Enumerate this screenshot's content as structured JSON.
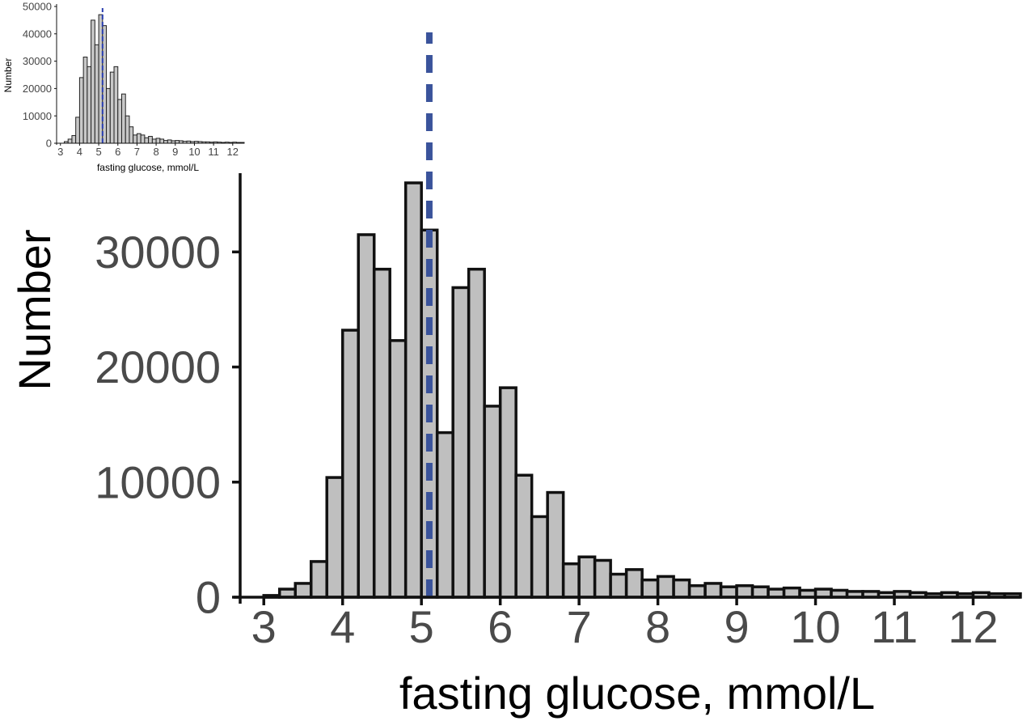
{
  "chart_data": [
    {
      "type": "bar",
      "role": "main",
      "x_start": [
        3.0,
        3.2,
        3.4,
        3.6,
        3.8,
        4.0,
        4.2,
        4.4,
        4.6,
        4.8,
        5.0,
        5.2,
        5.4,
        5.6,
        5.8,
        6.0,
        6.2,
        6.4,
        6.6,
        6.8,
        7.0,
        7.2,
        7.4,
        7.6,
        7.8,
        8.0,
        8.2,
        8.4,
        8.6,
        8.8,
        9.0,
        9.2,
        9.4,
        9.6,
        9.8,
        10.0,
        10.2,
        10.4,
        10.6,
        10.8,
        11.0,
        11.2,
        11.4,
        11.6,
        11.8,
        12.0,
        12.2,
        12.4
      ],
      "bin_width": 0.2,
      "values": [
        150,
        700,
        1200,
        3100,
        10400,
        23200,
        31500,
        28500,
        22300,
        36000,
        31900,
        14300,
        26900,
        28500,
        16600,
        18200,
        10600,
        7000,
        9100,
        2900,
        3500,
        3200,
        2000,
        2400,
        1500,
        1800,
        1500,
        1000,
        1200,
        900,
        1000,
        900,
        700,
        800,
        600,
        700,
        600,
        500,
        500,
        400,
        500,
        400,
        300,
        400,
        300,
        400,
        300,
        300
      ],
      "xlabel": "fasting glucose, mmol/L",
      "ylabel": "Number",
      "xlim": [
        2.7,
        12.6
      ],
      "ylim": [
        0,
        36000
      ],
      "x_ticks": [
        "3",
        "4",
        "5",
        "6",
        "7",
        "8",
        "9",
        "10",
        "11",
        "12"
      ],
      "y_ticks": [
        "0",
        "10000",
        "20000",
        "30000"
      ],
      "reference_line": {
        "x": 5.1,
        "style": "dashed",
        "color": "#3a539b"
      },
      "bar_color": "#bfbfbf",
      "edge_color": "#111111",
      "grid": false
    },
    {
      "type": "bar",
      "role": "inset",
      "x_start": [
        3.2,
        3.4,
        3.6,
        3.8,
        4.0,
        4.2,
        4.4,
        4.6,
        4.8,
        5.0,
        5.2,
        5.4,
        5.6,
        5.8,
        6.0,
        6.2,
        6.4,
        6.6,
        6.8,
        7.0,
        7.2,
        7.4,
        7.6,
        7.8,
        8.0,
        8.2,
        8.4,
        8.6,
        8.8,
        9.0,
        9.2,
        9.4,
        9.6,
        9.8,
        10.0,
        10.2,
        10.4,
        10.6,
        10.8,
        11.0,
        11.2,
        11.4,
        11.6,
        11.8,
        12.0,
        12.2,
        12.4
      ],
      "bin_width": 0.2,
      "values": [
        600,
        1500,
        2800,
        9500,
        24000,
        31500,
        28000,
        45000,
        36000,
        47000,
        43000,
        20000,
        26000,
        28000,
        16000,
        18000,
        10000,
        6000,
        3000,
        3500,
        3000,
        2000,
        2500,
        1500,
        1800,
        1500,
        1000,
        1200,
        900,
        1000,
        900,
        700,
        800,
        600,
        700,
        600,
        500,
        500,
        400,
        500,
        400,
        300,
        400,
        300,
        400,
        300,
        300
      ],
      "xlabel": "fasting glucose, mmol/L",
      "ylabel": "Number",
      "xlim": [
        2.8,
        12.6
      ],
      "ylim": [
        0,
        50000
      ],
      "x_ticks": [
        "3",
        "4",
        "5",
        "6",
        "7",
        "8",
        "9",
        "10",
        "11",
        "12"
      ],
      "y_ticks": [
        "0",
        "10000",
        "20000",
        "30000",
        "40000",
        "50000"
      ],
      "reference_line": {
        "x": 5.2,
        "style": "dashed",
        "color": "#2a3fb0"
      },
      "bar_color": "#c8c8c8",
      "edge_color": "#222222",
      "grid": false
    }
  ]
}
